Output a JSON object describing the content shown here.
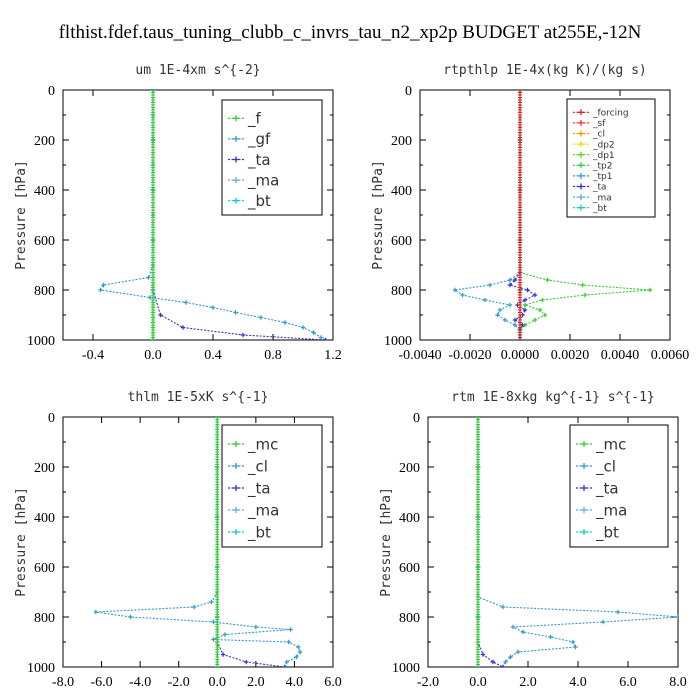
{
  "figure_title": "flthist.fdef.taus_tuning_clubb_c_invrs_tau_n2_xp2p  BUDGET at255E,-12N",
  "chart_data": [
    {
      "type": "line",
      "title": "um  1E-4xm s^{-2}",
      "ylabel": "Pressure [hPa]",
      "xlim": [
        -0.6,
        1.2
      ],
      "ylim": [
        1000,
        0
      ],
      "xticks": [
        -0.4,
        0.0,
        0.4,
        0.8,
        1.2
      ],
      "xtick_labels": [
        "-0.4",
        "0.0",
        "0.4",
        "0.8",
        "1.2"
      ],
      "yticks": [
        0,
        200,
        400,
        600,
        800,
        1000
      ],
      "ytick_labels": [
        "0",
        "200",
        "400",
        "600",
        "800",
        "1000"
      ],
      "legend_position": "top-right",
      "legend_font": 15,
      "series": [
        {
          "name": "_f",
          "color": "#33cc33",
          "y": [
            0,
            100,
            200,
            300,
            400,
            500,
            600,
            700,
            750,
            780,
            800,
            830,
            850,
            870,
            890,
            910,
            930,
            950,
            970,
            990,
            1000
          ],
          "x": [
            0,
            0,
            0,
            0,
            0,
            0,
            0,
            0,
            0,
            0,
            0,
            0,
            0,
            0,
            0,
            0,
            0,
            0,
            0,
            0,
            0
          ]
        },
        {
          "name": "_gf",
          "color": "#3399cc",
          "y": [
            0,
            100,
            200,
            300,
            400,
            500,
            600,
            700,
            750,
            780,
            800,
            830,
            850,
            870,
            890,
            910,
            930,
            950,
            970,
            990,
            1000
          ],
          "x": [
            0,
            0,
            0,
            0,
            0,
            0,
            0,
            0,
            -0.03,
            -0.33,
            -0.35,
            -0.02,
            0.22,
            0.4,
            0.55,
            0.72,
            0.88,
            1.0,
            1.07,
            1.12,
            1.15
          ]
        },
        {
          "name": "_ta",
          "color": "#3333cc",
          "y": [
            0,
            200,
            400,
            600,
            800,
            900,
            950,
            980,
            1000
          ],
          "x": [
            0,
            0,
            0,
            0,
            0,
            0.05,
            0.2,
            0.6,
            1.15
          ]
        },
        {
          "name": "_ma",
          "color": "#66aadd",
          "y": [
            0,
            200,
            400,
            600,
            800,
            1000
          ],
          "x": [
            0,
            0,
            0,
            0,
            0,
            0
          ]
        },
        {
          "name": "_bt",
          "color": "#11cccc",
          "y": [
            0,
            200,
            400,
            600,
            800,
            1000
          ],
          "x": [
            0,
            0,
            0,
            0,
            0,
            0
          ]
        }
      ]
    },
    {
      "type": "line",
      "title": "rtpthlp  1E-4x(kg K)/(kg s)",
      "ylabel": "Pressure [hPa]",
      "xlim": [
        -0.004,
        0.006
      ],
      "ylim": [
        1000,
        0
      ],
      "xticks": [
        -0.004,
        -0.002,
        0.0,
        0.002,
        0.004,
        0.006
      ],
      "xtick_labels": [
        "-0.0040",
        "-0.0020",
        "0.0000",
        "0.0020",
        "0.0040",
        "0.0060"
      ],
      "yticks": [
        0,
        200,
        400,
        600,
        800,
        1000
      ],
      "ytick_labels": [
        "0",
        "200",
        "400",
        "600",
        "800",
        "1000"
      ],
      "legend_position": "top-right",
      "legend_font": 9,
      "series": [
        {
          "name": "_forcing",
          "color": "#dd2222",
          "y": [
            0,
            200,
            400,
            600,
            800,
            1000
          ],
          "x": [
            0,
            0,
            0,
            0,
            0,
            0
          ]
        },
        {
          "name": "_sf",
          "color": "#ff3333",
          "y": [
            0,
            200,
            400,
            600,
            800,
            1000
          ],
          "x": [
            0,
            0,
            0,
            0,
            0,
            0
          ]
        },
        {
          "name": "_cl",
          "color": "#ee9900",
          "y": [
            0,
            200,
            400,
            600,
            800,
            1000
          ],
          "x": [
            0,
            0,
            0,
            0,
            0,
            0
          ]
        },
        {
          "name": "_dp2",
          "color": "#eedd00",
          "y": [
            0,
            200,
            400,
            600,
            800,
            1000
          ],
          "x": [
            0,
            0,
            0,
            0,
            0,
            0
          ]
        },
        {
          "name": "_dp1",
          "color": "#66cc33",
          "y": [
            0,
            200,
            400,
            600,
            800,
            1000
          ],
          "x": [
            0,
            0,
            0,
            0,
            0,
            0
          ]
        },
        {
          "name": "_tp2",
          "color": "#33cc33",
          "y": [
            0,
            730,
            760,
            780,
            800,
            820,
            840,
            860,
            880,
            900,
            920,
            940,
            960,
            980,
            1000
          ],
          "x": [
            0,
            0,
            0.0011,
            0.0025,
            0.0052,
            0.0026,
            0.0009,
            0.0002,
            0.0008,
            0.001,
            0.0006,
            0.0002,
            0,
            0,
            0
          ]
        },
        {
          "name": "_tp1",
          "color": "#3399cc",
          "y": [
            0,
            730,
            760,
            780,
            800,
            820,
            840,
            860,
            880,
            900,
            920,
            940,
            960,
            980,
            1000
          ],
          "x": [
            0,
            0,
            -0.0004,
            -0.0012,
            -0.0026,
            -0.0023,
            -0.0014,
            -0.0004,
            -0.0008,
            -0.0009,
            -0.0006,
            -0.0002,
            0,
            0,
            0
          ]
        },
        {
          "name": "_ta",
          "color": "#3333cc",
          "y": [
            0,
            730,
            760,
            780,
            800,
            820,
            840,
            860,
            880,
            900,
            920,
            940,
            960,
            1000
          ],
          "x": [
            0,
            0,
            -0.0002,
            -0.0004,
            0.0003,
            0.0006,
            0.0002,
            -0.0001,
            0.0002,
            0.0001,
            -0.0002,
            0.0001,
            0,
            0
          ]
        },
        {
          "name": "_ma",
          "color": "#66aadd",
          "y": [
            0,
            200,
            400,
            600,
            800,
            1000
          ],
          "x": [
            0,
            0,
            0,
            0,
            0,
            0
          ]
        },
        {
          "name": "_bt",
          "color": "#11cccc",
          "y": [
            0,
            200,
            400,
            600,
            800,
            1000
          ],
          "x": [
            0,
            0,
            0,
            0,
            0,
            0
          ]
        }
      ]
    },
    {
      "type": "line",
      "title": "thlm  1E-5xK s^{-1}",
      "ylabel": "Pressure [hPa]",
      "xlim": [
        -8.0,
        6.0
      ],
      "ylim": [
        1000,
        0
      ],
      "xticks": [
        -8,
        -6,
        -4,
        -2,
        0,
        2,
        4,
        6
      ],
      "xtick_labels": [
        "-8.0",
        "-6.0",
        "-4.0",
        "-2.0",
        "0.0",
        "2.0",
        "4.0",
        "6.0"
      ],
      "yticks": [
        0,
        200,
        400,
        600,
        800,
        1000
      ],
      "ytick_labels": [
        "0",
        "200",
        "400",
        "600",
        "800",
        "1000"
      ],
      "legend_position": "top-right",
      "legend_font": 15,
      "series": [
        {
          "name": "_mc",
          "color": "#33cc33",
          "y": [
            0,
            200,
            400,
            600,
            800,
            1000
          ],
          "x": [
            0,
            0,
            0,
            0,
            0,
            0
          ]
        },
        {
          "name": "_cl",
          "color": "#3399cc",
          "y": [
            0,
            700,
            740,
            760,
            780,
            800,
            820,
            840,
            850,
            870,
            890,
            900,
            920,
            940,
            960,
            980,
            1000
          ],
          "x": [
            0,
            0,
            -0.3,
            -1.2,
            -6.3,
            -4.5,
            -0.2,
            2.0,
            3.8,
            0.4,
            -0.2,
            3.7,
            4.2,
            4.3,
            4.1,
            3.6,
            3.5
          ]
        },
        {
          "name": "_ta",
          "color": "#3333cc",
          "y": [
            0,
            200,
            400,
            600,
            800,
            900,
            950,
            980,
            1000
          ],
          "x": [
            0,
            0,
            0,
            0,
            0,
            0,
            0.3,
            1.5,
            3.5
          ]
        },
        {
          "name": "_ma",
          "color": "#66aadd",
          "y": [
            0,
            200,
            400,
            600,
            800,
            1000
          ],
          "x": [
            0,
            0,
            0,
            0,
            0,
            0
          ]
        },
        {
          "name": "_bt",
          "color": "#11cccc",
          "y": [
            0,
            200,
            400,
            600,
            800,
            1000
          ],
          "x": [
            0,
            0,
            0,
            0,
            0,
            0
          ]
        }
      ]
    },
    {
      "type": "line",
      "title": "rtm  1E-8xkg kg^{-1} s^{-1}",
      "ylabel": "Pressure [hPa]",
      "xlim": [
        -2.0,
        8.0
      ],
      "ylim": [
        1000,
        0
      ],
      "xticks": [
        -2,
        0,
        2,
        4,
        6,
        8
      ],
      "xtick_labels": [
        "-2.0",
        "0.0",
        "2.0",
        "4.0",
        "6.0",
        "8.0"
      ],
      "yticks": [
        0,
        200,
        400,
        600,
        800,
        1000
      ],
      "ytick_labels": [
        "0",
        "200",
        "400",
        "600",
        "800",
        "1000"
      ],
      "legend_position": "top-right",
      "legend_font": 15,
      "series": [
        {
          "name": "_mc",
          "color": "#33cc33",
          "y": [
            0,
            200,
            400,
            600,
            800,
            1000
          ],
          "x": [
            0,
            0,
            0,
            0,
            0,
            0
          ]
        },
        {
          "name": "_cl",
          "color": "#3399cc",
          "y": [
            0,
            720,
            760,
            780,
            800,
            820,
            840,
            860,
            880,
            900,
            920,
            940,
            960,
            980,
            1000
          ],
          "x": [
            0,
            0,
            1.0,
            5.6,
            8.0,
            5.0,
            1.4,
            1.8,
            2.9,
            3.8,
            3.9,
            1.6,
            1.3,
            1.1,
            1.0
          ]
        },
        {
          "name": "_ta",
          "color": "#3333cc",
          "y": [
            0,
            200,
            400,
            600,
            800,
            900,
            950,
            980,
            1000
          ],
          "x": [
            0,
            0,
            0,
            0,
            0,
            0,
            0.2,
            0.6,
            1.0
          ]
        },
        {
          "name": "_ma",
          "color": "#66aadd",
          "y": [
            0,
            200,
            400,
            600,
            800,
            1000
          ],
          "x": [
            0,
            0,
            0,
            0,
            0,
            0
          ]
        },
        {
          "name": "_bt",
          "color": "#11cccc",
          "y": [
            0,
            200,
            400,
            600,
            800,
            1000
          ],
          "x": [
            0,
            0,
            0,
            0,
            0,
            0
          ]
        }
      ]
    }
  ]
}
